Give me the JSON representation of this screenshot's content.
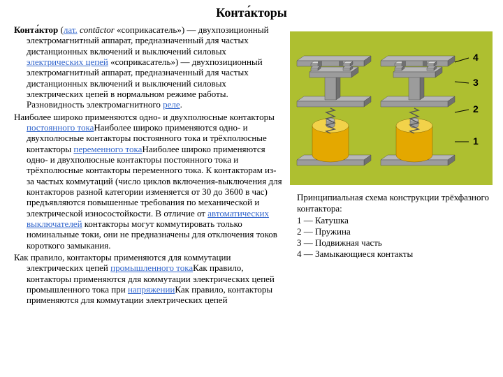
{
  "title": "Конта́кторы",
  "para1": {
    "bold": "Конта́ктор",
    "t1": " (",
    "link_lat": "лат.",
    "t2": " ",
    "ital": "contāctor",
    "t3": " «соприкасатель») — двухпозиционный электромагнитный аппарат, предназначенный для частых дистанционных включений и выключений силовых ",
    "link_circ": "электрических цепей",
    "t4": " «соприкасатель») — двухпозиционный электромагнитный аппарат, предназначенный для частых дистанционных включений и выключений силовых электрических цепей в нормальном режиме работы. Разновидность электромагнитного ",
    "link_relay": "реле",
    "t5": "."
  },
  "para2": {
    "t1": "Наиболее широко применяются одно- и двухполюсные контакторы ",
    "link_dc": "постоянного тока",
    "t2": "Наиболее широко применяются одно- и двухполюсные контакторы постоянного тока и трёхполюсные контакторы ",
    "link_ac": "переменного тока",
    "t3": "Наиболее широко применяются одно- и двухполюсные контакторы постоянного тока и трёхполюсные контакторы переменного тока. К контакторам из-за частых коммутаций (число циклов включения-выключения для контакторов разной категории изменяется от 30 до 3600 в час) предъявляются повышенные требования по механической и электрической износостойкости. В отличие от ",
    "link_auto": "автоматических выключателей",
    "t4": " контакторы могут коммутировать только номинальные токи, они не предназначены для отключения токов короткого замыкания."
  },
  "para3": {
    "t1": "Как правило, контакторы применяются для коммутации электрических цепей ",
    "link_ind": "промышленного тока",
    "t2": "Как правило, контакторы применяются для коммутации электрических цепей промышленного тока при ",
    "link_volt": "напряжении",
    "t3": "Как правило, контакторы применяются для коммутации электрических цепей"
  },
  "figure": {
    "labels": {
      "l4": "4",
      "l3": "3",
      "l2": "2",
      "l1": "1"
    },
    "colors": {
      "bg": "#aebf30",
      "gray_light": "#b7b7b7",
      "gray_mid": "#9c9c9c",
      "gray_dark": "#707070",
      "coil_top": "#f2d24a",
      "coil_side": "#e4a800",
      "black": "#000000"
    }
  },
  "caption": {
    "line0": "Принципиальная схема конструкции трёхфазного контактора:",
    "line1": "1 — Катушка",
    "line2": "2 — Пружина",
    "line3": "3 — Подвижная часть",
    "line4": "4 — Замыкающиеся контакты"
  }
}
